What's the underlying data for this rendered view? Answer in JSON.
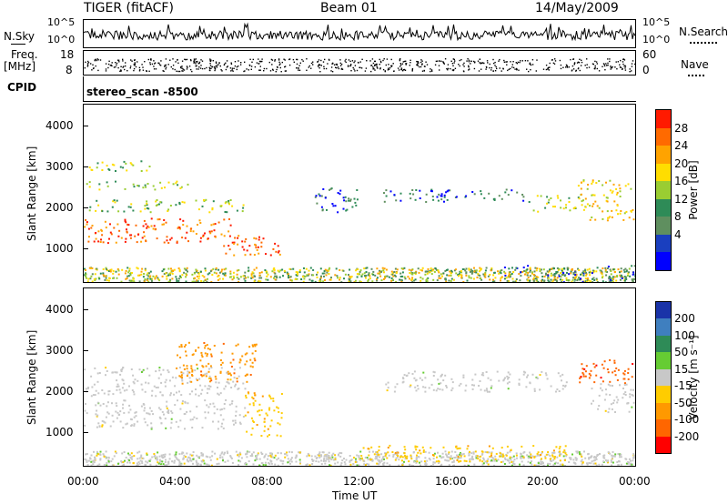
{
  "header": {
    "radar": "TIGER (fitACF)",
    "beam": "Beam 01",
    "date": "14/May/2009"
  },
  "top_panels": {
    "nsky_label": "N.Sky",
    "nsky_ticks": [
      "10^5",
      "10^0"
    ],
    "nsearch_label": "N.Search",
    "nsearch_ticks": [
      "10^5",
      "10^0"
    ],
    "freq_label": "Freq.",
    "freq_unit": "[MHz]",
    "freq_ticks": [
      "18",
      "8"
    ],
    "nave_label": "Nave",
    "nave_ticks": [
      "60",
      "0"
    ],
    "cpid_label": "CPID",
    "cpid_value": "stereo_scan -8500"
  },
  "power_colorbar": {
    "label": "Power [dB]",
    "ticks": [
      "28",
      "24",
      "20",
      "16",
      "12",
      "8",
      "4"
    ],
    "colors": [
      "#ff1a00",
      "#ff6a00",
      "#ffa300",
      "#ffdd00",
      "#9acd32",
      "#2e8b57",
      "#5f8f5f",
      "#1a3fbf",
      "#0000ff"
    ]
  },
  "velocity_colorbar": {
    "label": "Velocity [m s⁻¹]",
    "ticks": [
      "200",
      "100",
      "50",
      "15",
      "-15",
      "-50",
      "-100",
      "-200"
    ],
    "colors": [
      "#1a33a8",
      "#3f7fbf",
      "#2e8b57",
      "#66cc33",
      "#c8c8c8",
      "#ffcc00",
      "#ff9900",
      "#ff6600",
      "#ff0000"
    ]
  },
  "axes": {
    "ylabel": "Slant Range [km]",
    "xlabel": "Time UT",
    "yticks": [
      "1000",
      "2000",
      "3000",
      "4000"
    ],
    "xticks": [
      "00:00",
      "04:00",
      "08:00",
      "12:00",
      "16:00",
      "20:00",
      "00:00"
    ]
  },
  "chart_data": [
    {
      "type": "heatmap",
      "title": "Power",
      "xlabel": "Time UT",
      "ylabel": "Slant Range [km]",
      "xlim": [
        0,
        24
      ],
      "ylim": [
        180,
        4500
      ],
      "colorbar": "Power [dB]",
      "regions": [
        {
          "t0": 0.0,
          "t1": 6.5,
          "r0": 1150,
          "r1": 1750,
          "level": 28
        },
        {
          "t0": 6.0,
          "t1": 8.6,
          "r0": 850,
          "r1": 1350,
          "level": 28
        },
        {
          "t0": 0.0,
          "t1": 7.0,
          "r0": 1900,
          "r1": 2200,
          "level": 16
        },
        {
          "t0": 0.0,
          "t1": 4.5,
          "r0": 2450,
          "r1": 2650,
          "level": 16
        },
        {
          "t0": 0.0,
          "t1": 3.0,
          "r0": 2900,
          "r1": 3150,
          "level": 16
        },
        {
          "t0": 10.0,
          "t1": 12.0,
          "r0": 1900,
          "r1": 2500,
          "level": 8
        },
        {
          "t0": 13.0,
          "t1": 19.5,
          "r0": 2150,
          "r1": 2450,
          "level": 8
        },
        {
          "t0": 19.5,
          "t1": 21.5,
          "r0": 1900,
          "r1": 2300,
          "level": 16
        },
        {
          "t0": 21.5,
          "t1": 24.0,
          "r0": 1700,
          "r1": 2700,
          "level": 20
        },
        {
          "t0": 18.0,
          "t1": 24.0,
          "r0": 180,
          "r1": 600,
          "level": 8
        }
      ]
    },
    {
      "type": "heatmap",
      "title": "Velocity",
      "xlabel": "Time UT",
      "ylabel": "Slant Range [km]",
      "xlim": [
        0,
        24
      ],
      "ylim": [
        180,
        4500
      ],
      "colorbar": "Velocity [m s⁻¹]",
      "regions": [
        {
          "t0": 0.0,
          "t1": 7.0,
          "r0": 1100,
          "r1": 1800,
          "level": 0
        },
        {
          "t0": 0.0,
          "t1": 7.0,
          "r0": 1900,
          "r1": 2600,
          "level": 0
        },
        {
          "t0": 7.0,
          "t1": 8.6,
          "r0": 900,
          "r1": 2000,
          "level": -50
        },
        {
          "t0": 4.0,
          "t1": 7.5,
          "r0": 2200,
          "r1": 3200,
          "level": -100
        },
        {
          "t0": 13.0,
          "t1": 21.0,
          "r0": 2000,
          "r1": 2500,
          "level": 0
        },
        {
          "t0": 12.0,
          "t1": 21.0,
          "r0": 300,
          "r1": 700,
          "level": -50
        },
        {
          "t0": 21.5,
          "t1": 24.0,
          "r0": 2200,
          "r1": 2800,
          "level": -200
        },
        {
          "t0": 22.0,
          "t1": 24.0,
          "r0": 1500,
          "r1": 2200,
          "level": 0
        }
      ]
    }
  ]
}
